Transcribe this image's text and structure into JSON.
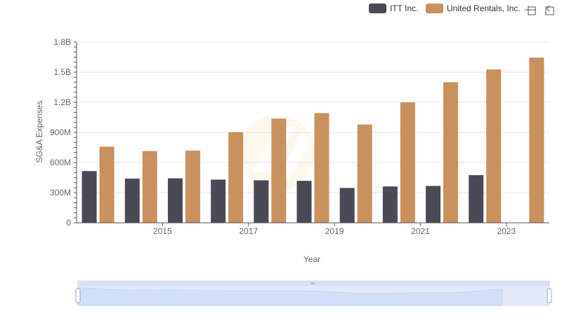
{
  "toolbar": {
    "icons": [
      "restore-icon",
      "zoom-reset-icon"
    ]
  },
  "chart_data": {
    "type": "bar",
    "xlabel": "Year",
    "ylabel": "SG&A Expenses",
    "ylim": [
      0,
      1800000000
    ],
    "yticks": [
      {
        "value": 0,
        "label": "0"
      },
      {
        "value": 300000000,
        "label": "300M"
      },
      {
        "value": 600000000,
        "label": "600M"
      },
      {
        "value": 900000000,
        "label": "900M"
      },
      {
        "value": 1200000000,
        "label": "1.2B"
      },
      {
        "value": 1500000000,
        "label": "1.5B"
      },
      {
        "value": 1800000000,
        "label": "1.8B"
      }
    ],
    "categories": [
      2014,
      2015,
      2016,
      2017,
      2018,
      2019,
      2020,
      2021,
      2022,
      2023,
      2024
    ],
    "xtick_labels": [
      "2015",
      "2017",
      "2019",
      "2021",
      "2023"
    ],
    "legend_position": "top-right",
    "grid": true,
    "series": [
      {
        "name": "ITT Inc.",
        "color": "#4a4a56",
        "values": [
          515000000,
          440000000,
          443000000,
          430000000,
          423000000,
          418000000,
          347000000,
          362000000,
          367000000,
          475000000,
          null
        ]
      },
      {
        "name": "United Rentals, Inc.",
        "color": "#c9915e",
        "values": [
          758000000,
          714000000,
          719000000,
          903000000,
          1038000000,
          1092000000,
          979000000,
          1199000000,
          1400000000,
          1527000000,
          1645000000
        ]
      }
    ]
  }
}
